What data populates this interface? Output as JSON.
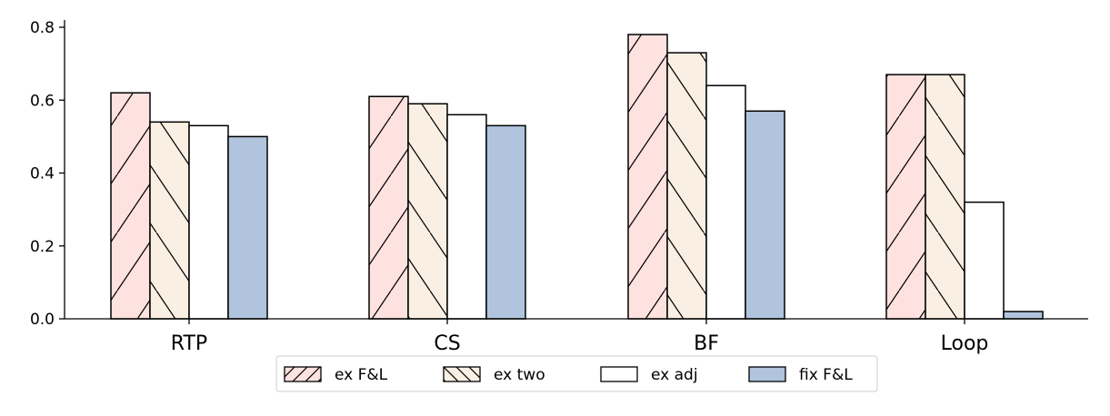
{
  "chart_data": {
    "type": "bar",
    "title": "",
    "xlabel": "",
    "ylabel": "",
    "categories": [
      "RTP",
      "CS",
      "BF",
      "Loop"
    ],
    "ylim": [
      0,
      0.8
    ],
    "yticks": [
      0.0,
      0.2,
      0.4,
      0.6,
      0.8
    ],
    "ytick_labels": [
      "0.0",
      "0.2",
      "0.4",
      "0.6",
      "0.8"
    ],
    "grid": false,
    "legend_position": "bottom-center",
    "series": [
      {
        "name": "ex F&L",
        "values": [
          0.62,
          0.61,
          0.78,
          0.67
        ],
        "color": "#fde2df",
        "hatch": "forward-diagonal"
      },
      {
        "name": "ex two",
        "values": [
          0.54,
          0.59,
          0.73,
          0.67
        ],
        "color": "#faefe3",
        "hatch": "back-diagonal"
      },
      {
        "name": "ex adj",
        "values": [
          0.53,
          0.56,
          0.64,
          0.32
        ],
        "color": "#ffffff",
        "hatch": "none"
      },
      {
        "name": "fix F&L",
        "values": [
          0.5,
          0.53,
          0.57,
          0.02
        ],
        "color": "#b0c4de",
        "hatch": "none"
      }
    ]
  }
}
